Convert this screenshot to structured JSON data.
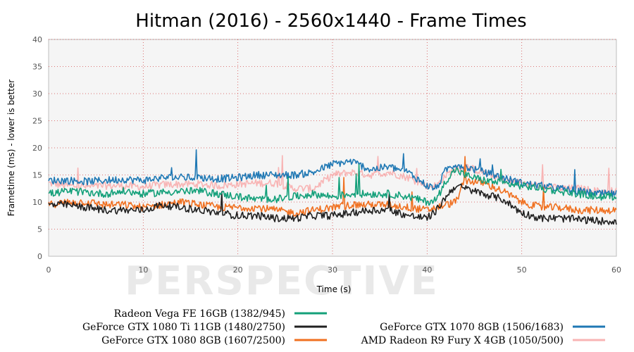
{
  "chart_data": {
    "type": "line",
    "title": "Hitman (2016) - 2560x1440 - Frame Times",
    "xlabel": "Time (s)",
    "ylabel": "Frametime (ms) - lower is better",
    "xlim": [
      0,
      60
    ],
    "ylim": [
      0,
      40
    ],
    "x_ticks": [
      "0",
      "10",
      "20",
      "30",
      "40",
      "50",
      "60"
    ],
    "y_ticks": [
      "0",
      "5",
      "10",
      "15",
      "20",
      "25",
      "30",
      "35",
      "40"
    ],
    "grid": true,
    "watermark": "PERSPECTIVE",
    "legend_position": "bottom",
    "x": [
      0,
      2,
      4,
      6,
      8,
      10,
      12,
      14,
      16,
      18,
      20,
      22,
      24,
      26,
      28,
      30,
      32,
      34,
      36,
      38,
      40,
      41,
      42,
      43,
      44,
      46,
      48,
      50,
      52,
      54,
      56,
      58,
      60
    ],
    "series": [
      {
        "name": "Radeon Vega FE 16GB (1382/945)",
        "color": "#14a07a",
        "values": [
          11.5,
          12,
          11.8,
          11.5,
          12,
          11.5,
          11.8,
          12,
          12,
          11.5,
          11,
          10.5,
          10.5,
          11,
          11.5,
          11,
          11.5,
          11.5,
          11.5,
          11,
          10,
          10.5,
          14,
          16,
          15,
          14,
          13.5,
          13,
          12.5,
          12,
          11.5,
          11,
          11
        ]
      },
      {
        "name": "GeForce GTX 1080 Ti 11GB (1480/2750)",
        "color": "#202020",
        "values": [
          9.5,
          9.5,
          9,
          8.5,
          8.5,
          8.5,
          9.5,
          9,
          8.5,
          8,
          7.5,
          7.5,
          7,
          7,
          7.5,
          7.5,
          8,
          8.5,
          8.5,
          7.5,
          7,
          8.5,
          11,
          13,
          12.5,
          11.5,
          10.5,
          8,
          7,
          7,
          6.8,
          6.5,
          6.5
        ]
      },
      {
        "name": "GeForce GTX 1080 8GB (1607/2500)",
        "color": "#f07020",
        "values": [
          9.5,
          10,
          10,
          9.5,
          9.5,
          9,
          9.5,
          10,
          9.5,
          9,
          9,
          9,
          8.5,
          8,
          8.5,
          9,
          9.5,
          9.5,
          9.5,
          9,
          8.5,
          9,
          9.5,
          10,
          14,
          13.5,
          12,
          10,
          9,
          9,
          8.5,
          8.5,
          8.5
        ]
      },
      {
        "name": "GeForce GTX 1070 8GB (1506/1683)",
        "color": "#1f78b4",
        "values": [
          14,
          14,
          13.8,
          14,
          14.2,
          14,
          14.5,
          14.5,
          14.5,
          14.3,
          14.5,
          15,
          15,
          15,
          15.5,
          17,
          17.5,
          16,
          16.5,
          15.5,
          13,
          12.5,
          16,
          17,
          16.5,
          15.5,
          14.5,
          13.5,
          13,
          12.5,
          12,
          11.5,
          11.5
        ]
      },
      {
        "name": "AMD Radeon R9 Fury X 4GB (1050/500)",
        "color": "#f8b4b4",
        "values": [
          13.5,
          13,
          12.8,
          13,
          13,
          12.8,
          13.2,
          13.3,
          13.3,
          13,
          13.3,
          13.5,
          13.5,
          12.5,
          12.5,
          15,
          15.5,
          15,
          15.5,
          14.5,
          13,
          13,
          15,
          16,
          16.5,
          15.5,
          14,
          13.5,
          13,
          12.5,
          12.5,
          12,
          12
        ]
      }
    ]
  },
  "legend": {
    "left": [
      {
        "label": "Radeon Vega FE 16GB (1382/945)",
        "color": "#14a07a"
      },
      {
        "label": "GeForce GTX 1080 Ti 11GB (1480/2750)",
        "color": "#202020"
      },
      {
        "label": "GeForce GTX 1080 8GB (1607/2500)",
        "color": "#f07020"
      }
    ],
    "right": [
      {
        "label": "GeForce GTX 1070 8GB (1506/1683)",
        "color": "#1f78b4"
      },
      {
        "label": "AMD Radeon R9 Fury X 4GB (1050/500)",
        "color": "#f8b4b4"
      }
    ]
  }
}
